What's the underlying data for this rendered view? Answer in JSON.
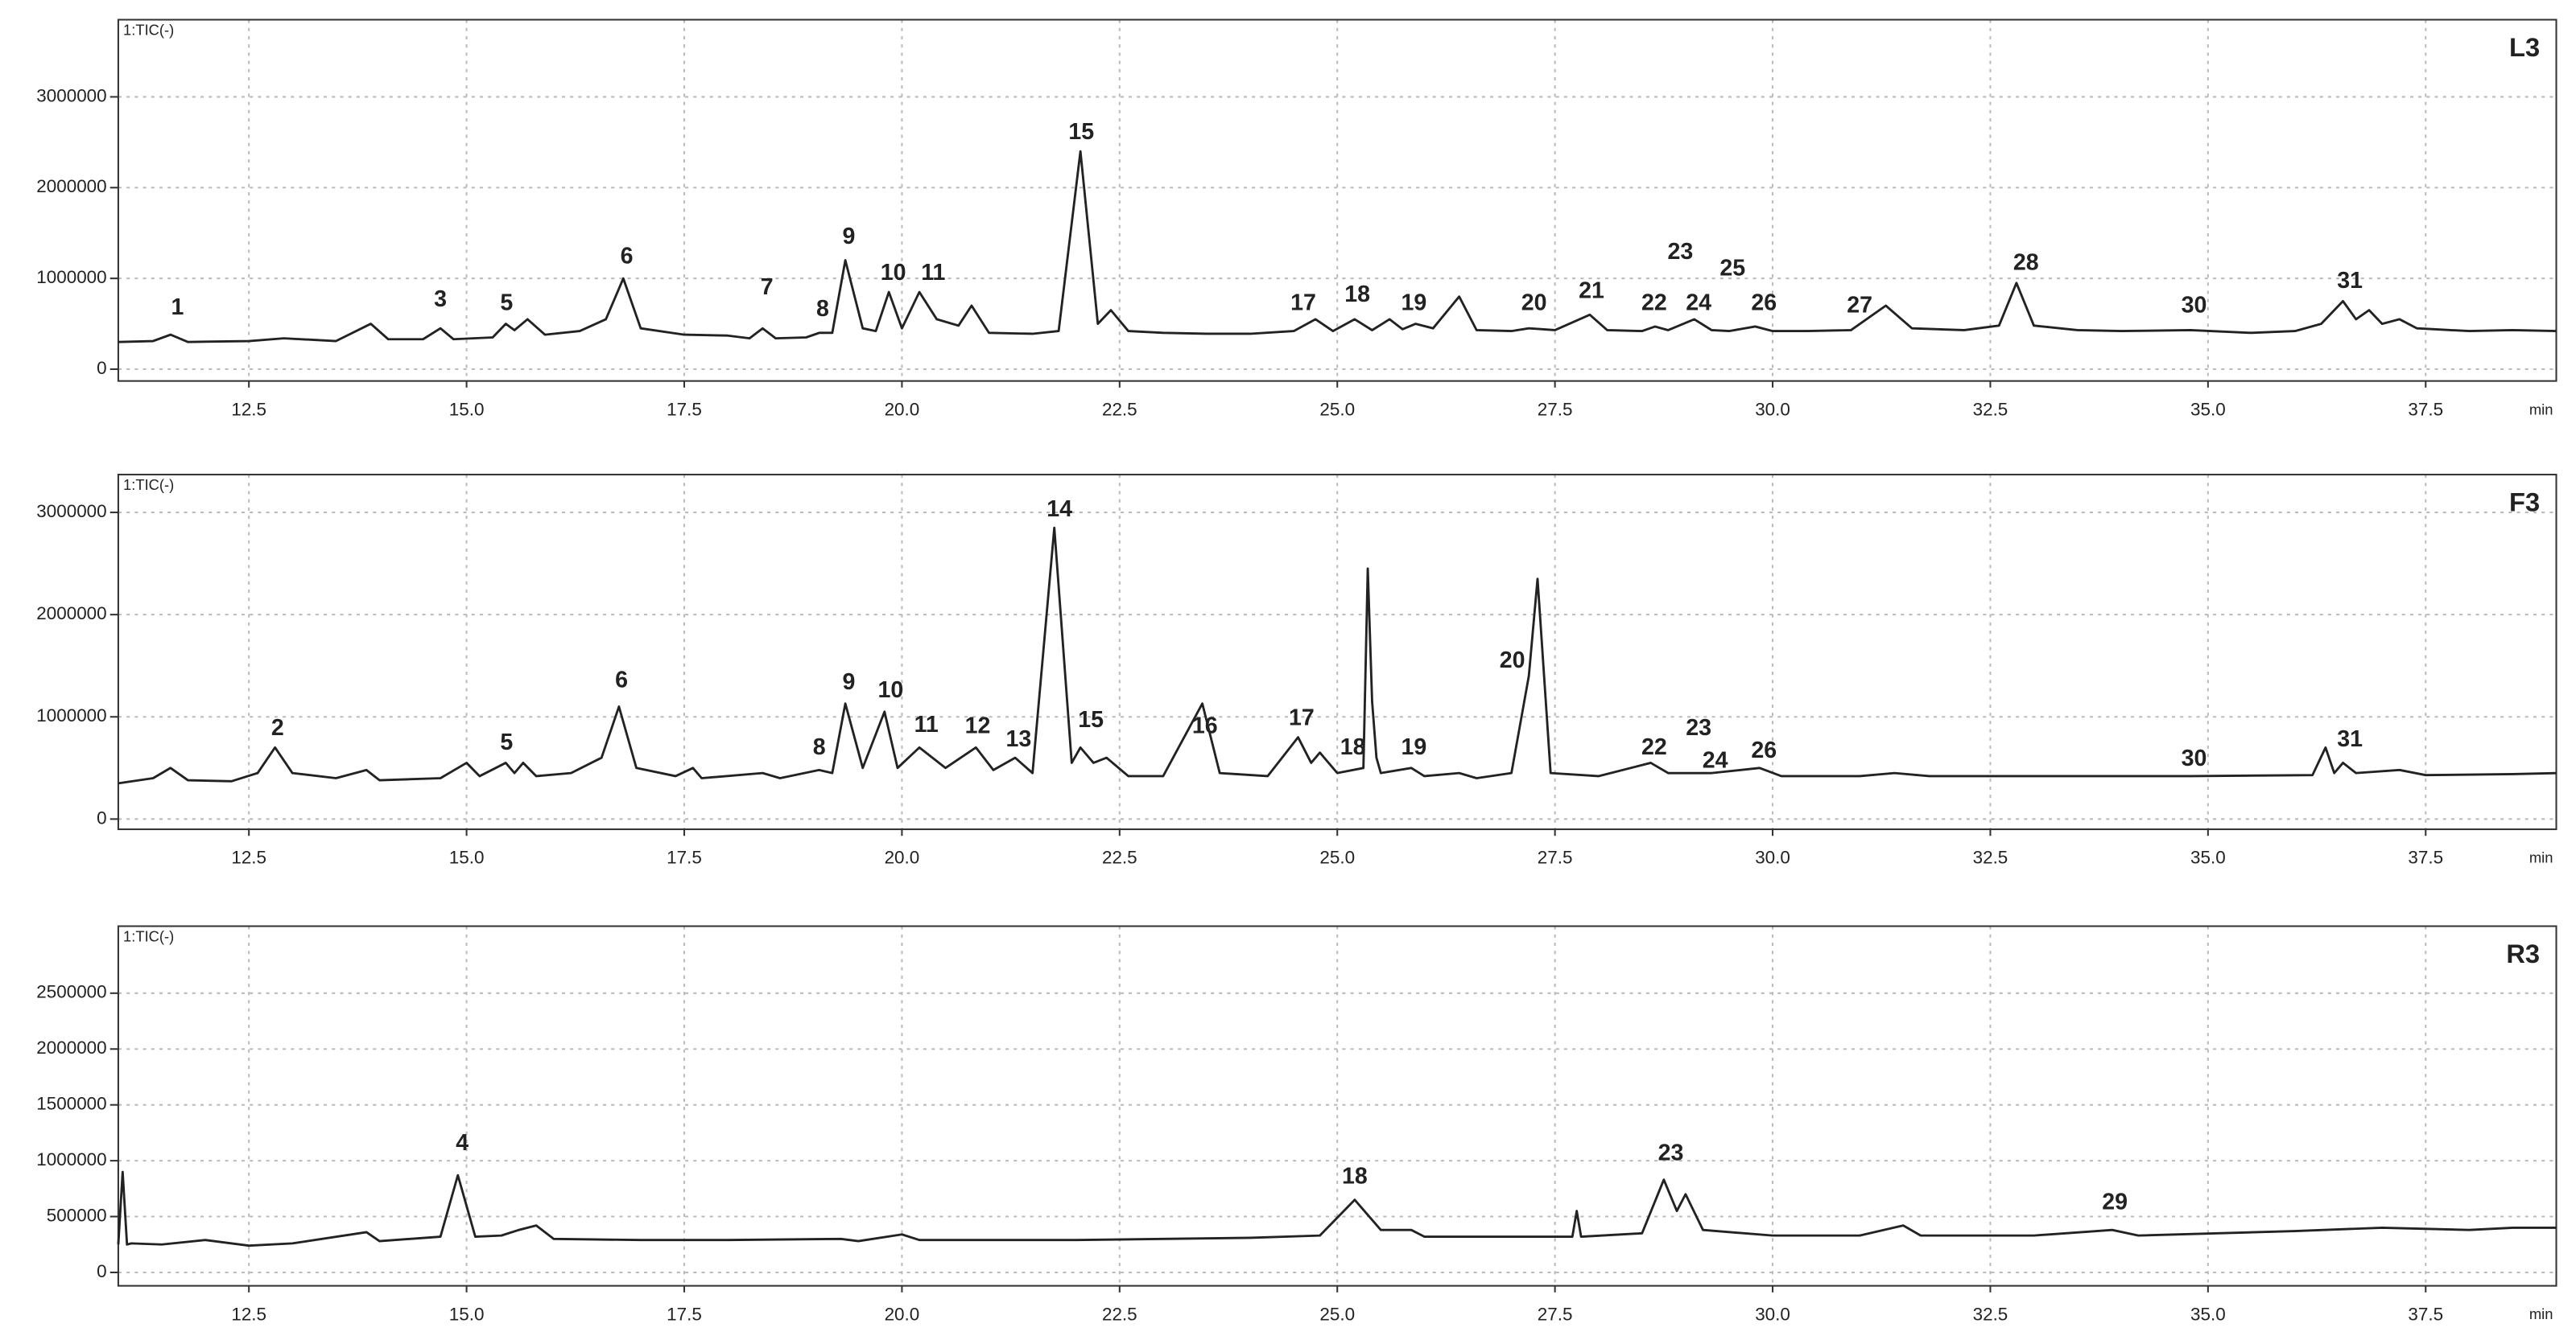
{
  "chart_data": [
    {
      "type": "line",
      "title": "L3",
      "signal": "1:TIC(-)",
      "x_unit": "min",
      "grid": true,
      "xlim": [
        11,
        39
      ],
      "ylim": [
        -130000,
        3850000
      ],
      "xticks": [
        12.5,
        {
          "value": 15,
          "label": "15.0"
        },
        17.5,
        {
          "value": 20,
          "label": "20.0"
        },
        22.5,
        {
          "value": 25,
          "label": "25.0"
        },
        27.5,
        {
          "value": 30,
          "label": "30.0"
        },
        32.5,
        {
          "value": 35,
          "label": "35.0"
        },
        37.5
      ],
      "yticks": [
        0,
        1000000,
        2000000,
        3000000
      ],
      "x": [
        11.0,
        11.4,
        11.6,
        11.8,
        12.5,
        12.9,
        13.5,
        13.9,
        14.1,
        14.5,
        14.7,
        14.85,
        15.3,
        15.45,
        15.55,
        15.7,
        15.9,
        16.3,
        16.6,
        16.8,
        17.0,
        17.5,
        18.0,
        18.25,
        18.4,
        18.55,
        18.9,
        19.05,
        19.2,
        19.35,
        19.55,
        19.7,
        19.85,
        20.0,
        20.2,
        20.4,
        20.65,
        20.8,
        21.0,
        21.5,
        21.8,
        22.05,
        22.25,
        22.4,
        22.6,
        23.0,
        23.5,
        24.0,
        24.5,
        24.75,
        24.95,
        25.2,
        25.4,
        25.6,
        25.75,
        25.9,
        26.1,
        26.4,
        26.6,
        27.0,
        27.2,
        27.5,
        27.9,
        28.1,
        28.5,
        28.65,
        28.8,
        29.1,
        29.3,
        29.5,
        29.8,
        30.0,
        30.4,
        30.9,
        31.3,
        31.6,
        32.2,
        32.6,
        32.8,
        33.0,
        33.5,
        34.0,
        34.8,
        35.5,
        36.0,
        36.3,
        36.55,
        36.7,
        36.85,
        37.0,
        37.2,
        37.4,
        38.0,
        38.5,
        39.0
      ],
      "series": [
        {
          "color": "#222222",
          "values": [
            300000,
            310000,
            380000,
            300000,
            310000,
            340000,
            310000,
            500000,
            330000,
            330000,
            450000,
            330000,
            350000,
            500000,
            430000,
            550000,
            380000,
            420000,
            550000,
            1000000,
            450000,
            380000,
            370000,
            340000,
            450000,
            340000,
            350000,
            400000,
            400000,
            1200000,
            450000,
            420000,
            850000,
            450000,
            850000,
            550000,
            480000,
            700000,
            400000,
            390000,
            420000,
            2400000,
            500000,
            650000,
            420000,
            400000,
            390000,
            390000,
            420000,
            550000,
            420000,
            550000,
            430000,
            550000,
            440000,
            500000,
            450000,
            800000,
            430000,
            420000,
            450000,
            430000,
            600000,
            430000,
            420000,
            470000,
            430000,
            550000,
            430000,
            420000,
            470000,
            420000,
            420000,
            430000,
            700000,
            450000,
            430000,
            480000,
            950000,
            480000,
            430000,
            420000,
            430000,
            400000,
            420000,
            500000,
            750000,
            550000,
            650000,
            500000,
            550000,
            450000,
            420000,
            430000,
            420000
          ]
        }
      ],
      "annotations": [
        {
          "label": "1",
          "x": 11.68,
          "y": 670000
        },
        {
          "label": "3",
          "x": 14.7,
          "y": 760000
        },
        {
          "label": "5",
          "x": 15.46,
          "y": 720000
        },
        {
          "label": "6",
          "x": 16.84,
          "y": 1230000
        },
        {
          "label": "7",
          "x": 18.45,
          "y": 890000
        },
        {
          "label": "8",
          "x": 19.09,
          "y": 650000
        },
        {
          "label": "9",
          "x": 19.39,
          "y": 1450000
        },
        {
          "label": "10",
          "x": 19.9,
          "y": 1050000
        },
        {
          "label": "11",
          "x": 20.36,
          "y": 1050000
        },
        {
          "label": "15",
          "x": 22.06,
          "y": 2600000
        },
        {
          "label": "17",
          "x": 24.61,
          "y": 720000
        },
        {
          "label": "18",
          "x": 25.23,
          "y": 810000
        },
        {
          "label": "19",
          "x": 25.88,
          "y": 720000
        },
        {
          "label": "20",
          "x": 27.26,
          "y": 720000
        },
        {
          "label": "21",
          "x": 27.92,
          "y": 850000
        },
        {
          "label": "22",
          "x": 28.64,
          "y": 720000
        },
        {
          "label": "23",
          "x": 28.94,
          "y": 1280000
        },
        {
          "label": "24",
          "x": 29.15,
          "y": 720000
        },
        {
          "label": "25",
          "x": 29.54,
          "y": 1100000
        },
        {
          "label": "26",
          "x": 29.9,
          "y": 720000
        },
        {
          "label": "27",
          "x": 31.0,
          "y": 690000
        },
        {
          "label": "28",
          "x": 32.91,
          "y": 1160000
        },
        {
          "label": "30",
          "x": 34.84,
          "y": 690000
        },
        {
          "label": "31",
          "x": 36.63,
          "y": 960000
        }
      ]
    },
    {
      "type": "line",
      "title": "F3",
      "signal": "1:TIC(-)",
      "x_unit": "min",
      "grid": true,
      "xlim": [
        11,
        39
      ],
      "ylim": [
        -100000,
        3370000
      ],
      "xticks": [
        12.5,
        {
          "value": 15,
          "label": "15.0"
        },
        17.5,
        {
          "value": 20,
          "label": "20.0"
        },
        22.5,
        {
          "value": 25,
          "label": "25.0"
        },
        27.5,
        {
          "value": 30,
          "label": "30.0"
        },
        32.5,
        {
          "value": 35,
          "label": "35.0"
        },
        37.5
      ],
      "yticks": [
        0,
        1000000,
        2000000,
        3000000
      ],
      "x": [
        11.0,
        11.4,
        11.6,
        11.8,
        12.3,
        12.6,
        12.8,
        13.0,
        13.5,
        13.85,
        14.0,
        14.7,
        15.0,
        15.15,
        15.45,
        15.55,
        15.65,
        15.8,
        16.2,
        16.55,
        16.75,
        16.95,
        17.4,
        17.6,
        17.7,
        18.4,
        18.6,
        19.05,
        19.2,
        19.35,
        19.55,
        19.8,
        19.95,
        20.2,
        20.5,
        20.85,
        21.05,
        21.3,
        21.5,
        21.75,
        21.95,
        22.05,
        22.2,
        22.35,
        22.6,
        23.0,
        23.45,
        23.65,
        24.2,
        24.55,
        24.7,
        24.8,
        25.0,
        25.3,
        25.35,
        25.4,
        25.45,
        25.5,
        25.85,
        26.0,
        26.4,
        26.6,
        27.0,
        27.2,
        27.3,
        27.45,
        28.0,
        28.6,
        28.8,
        29.3,
        29.85,
        30.1,
        31.0,
        31.4,
        31.8,
        33.0,
        34.8,
        36.2,
        36.35,
        36.45,
        36.55,
        36.7,
        37.2,
        37.5,
        38.5,
        39.0
      ],
      "series": [
        {
          "color": "#222222",
          "values": [
            350000,
            400000,
            500000,
            380000,
            370000,
            450000,
            700000,
            450000,
            400000,
            480000,
            380000,
            400000,
            550000,
            420000,
            550000,
            450000,
            550000,
            420000,
            450000,
            600000,
            1100000,
            500000,
            420000,
            500000,
            400000,
            450000,
            400000,
            480000,
            450000,
            1130000,
            500000,
            1050000,
            500000,
            700000,
            500000,
            700000,
            480000,
            600000,
            450000,
            2850000,
            550000,
            700000,
            550000,
            600000,
            420000,
            420000,
            1130000,
            450000,
            420000,
            800000,
            550000,
            650000,
            450000,
            500000,
            2450000,
            1150000,
            600000,
            450000,
            500000,
            420000,
            450000,
            400000,
            450000,
            1400000,
            2350000,
            450000,
            420000,
            550000,
            450000,
            450000,
            500000,
            420000,
            420000,
            450000,
            420000,
            420000,
            420000,
            430000,
            700000,
            450000,
            550000,
            450000,
            480000,
            430000,
            440000,
            450000
          ]
        }
      ],
      "annotations": [
        {
          "label": "2",
          "x": 12.83,
          "y": 880000
        },
        {
          "label": "5",
          "x": 15.46,
          "y": 740000
        },
        {
          "label": "6",
          "x": 16.78,
          "y": 1350000
        },
        {
          "label": "8",
          "x": 19.05,
          "y": 690000
        },
        {
          "label": "9",
          "x": 19.39,
          "y": 1330000
        },
        {
          "label": "10",
          "x": 19.87,
          "y": 1250000
        },
        {
          "label": "11",
          "x": 20.28,
          "y": 910000
        },
        {
          "label": "12",
          "x": 20.87,
          "y": 900000
        },
        {
          "label": "13",
          "x": 21.34,
          "y": 770000
        },
        {
          "label": "14",
          "x": 21.81,
          "y": 3020000
        },
        {
          "label": "15",
          "x": 22.17,
          "y": 960000
        },
        {
          "label": "16",
          "x": 23.48,
          "y": 900000
        },
        {
          "label": "17",
          "x": 24.59,
          "y": 980000
        },
        {
          "label": "18",
          "x": 25.18,
          "y": 690000
        },
        {
          "label": "19",
          "x": 25.88,
          "y": 690000
        },
        {
          "label": "20",
          "x": 27.01,
          "y": 1540000
        },
        {
          "label": "22",
          "x": 28.64,
          "y": 690000
        },
        {
          "label": "23",
          "x": 29.15,
          "y": 880000
        },
        {
          "label": "24",
          "x": 29.34,
          "y": 560000
        },
        {
          "label": "26",
          "x": 29.9,
          "y": 660000
        },
        {
          "label": "30",
          "x": 34.84,
          "y": 580000
        },
        {
          "label": "31",
          "x": 36.63,
          "y": 770000
        }
      ]
    },
    {
      "type": "line",
      "title": "R3",
      "signal": "1:TIC(-)",
      "x_unit": "min",
      "grid": true,
      "xlim": [
        11,
        39
      ],
      "ylim": [
        -120000,
        3100000
      ],
      "xticks": [
        12.5,
        {
          "value": 15,
          "label": "15.0"
        },
        17.5,
        {
          "value": 20,
          "label": "20.0"
        },
        22.5,
        {
          "value": 25,
          "label": "25.0"
        },
        27.5,
        {
          "value": 30,
          "label": "30.0"
        },
        32.5,
        {
          "value": 35,
          "label": "35.0"
        },
        37.5
      ],
      "yticks": [
        0,
        500000,
        1000000,
        1500000,
        2000000,
        2500000
      ],
      "x": [
        11.0,
        11.05,
        11.1,
        11.15,
        11.5,
        12.0,
        12.5,
        13.0,
        13.85,
        14.0,
        14.7,
        14.9,
        15.1,
        15.4,
        15.6,
        15.8,
        16.0,
        17.0,
        18.0,
        19.3,
        19.5,
        20.0,
        20.2,
        21.0,
        22.0,
        23.0,
        24.0,
        24.8,
        25.2,
        25.5,
        25.85,
        26.0,
        27.0,
        27.7,
        27.75,
        27.8,
        28.5,
        28.75,
        28.9,
        29.0,
        29.2,
        30.0,
        31.0,
        31.5,
        31.7,
        33.0,
        33.9,
        34.2,
        36.0,
        37.0,
        38.0,
        38.5,
        39.0
      ],
      "series": [
        {
          "color": "#222222",
          "values": [
            250000,
            900000,
            250000,
            260000,
            250000,
            290000,
            240000,
            260000,
            360000,
            280000,
            320000,
            870000,
            320000,
            330000,
            380000,
            420000,
            300000,
            290000,
            290000,
            300000,
            280000,
            340000,
            290000,
            290000,
            290000,
            300000,
            310000,
            330000,
            650000,
            380000,
            380000,
            320000,
            320000,
            320000,
            550000,
            320000,
            350000,
            830000,
            550000,
            700000,
            380000,
            330000,
            330000,
            420000,
            330000,
            330000,
            380000,
            330000,
            370000,
            400000,
            380000,
            400000,
            400000
          ]
        }
      ],
      "annotations": [
        {
          "label": "4",
          "x": 14.95,
          "y": 1150000
        },
        {
          "label": "18",
          "x": 25.2,
          "y": 850000
        },
        {
          "label": "23",
          "x": 28.83,
          "y": 1060000
        },
        {
          "label": "29",
          "x": 33.93,
          "y": 620000
        }
      ]
    }
  ]
}
